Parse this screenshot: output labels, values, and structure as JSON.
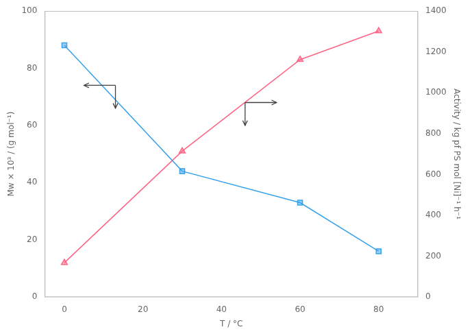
{
  "chart_data": {
    "type": "line",
    "xlabel": "T / °C",
    "ylabel": "Mw × 10³ / (g mol⁻¹)",
    "y2label": "Activity / kg pf PS mol [Ni]⁻¹ h⁻¹",
    "x": [
      0,
      30,
      60,
      80
    ],
    "series": [
      {
        "values": [
          88,
          44,
          33,
          16
        ],
        "marker": "square"
      },
      {
        "values": [
          168,
          714,
          1162,
          1302
        ],
        "marker": "triangle",
        "axis": "y2"
      }
    ],
    "xlim": [
      -5,
      90
    ],
    "xticks": [
      0,
      20,
      40,
      60,
      80
    ],
    "ylim": [
      0,
      100
    ],
    "yticks": [
      0,
      20,
      40,
      60,
      80,
      100
    ],
    "y2lim": [
      0,
      1400
    ],
    "y2ticks": [
      0,
      200,
      400,
      600,
      800,
      1000,
      1200,
      1400
    ],
    "grid": false,
    "annotations": [
      {
        "type": "arrow",
        "from": [
          13,
          74
        ],
        "to": [
          5,
          74
        ]
      },
      {
        "type": "arrow",
        "from": [
          13,
          74
        ],
        "to": [
          13,
          66
        ]
      },
      {
        "type": "arrow",
        "from": [
          46,
          68
        ],
        "to": [
          54,
          68
        ]
      },
      {
        "type": "arrow",
        "from": [
          46,
          68
        ],
        "to": [
          46,
          60
        ]
      }
    ]
  }
}
